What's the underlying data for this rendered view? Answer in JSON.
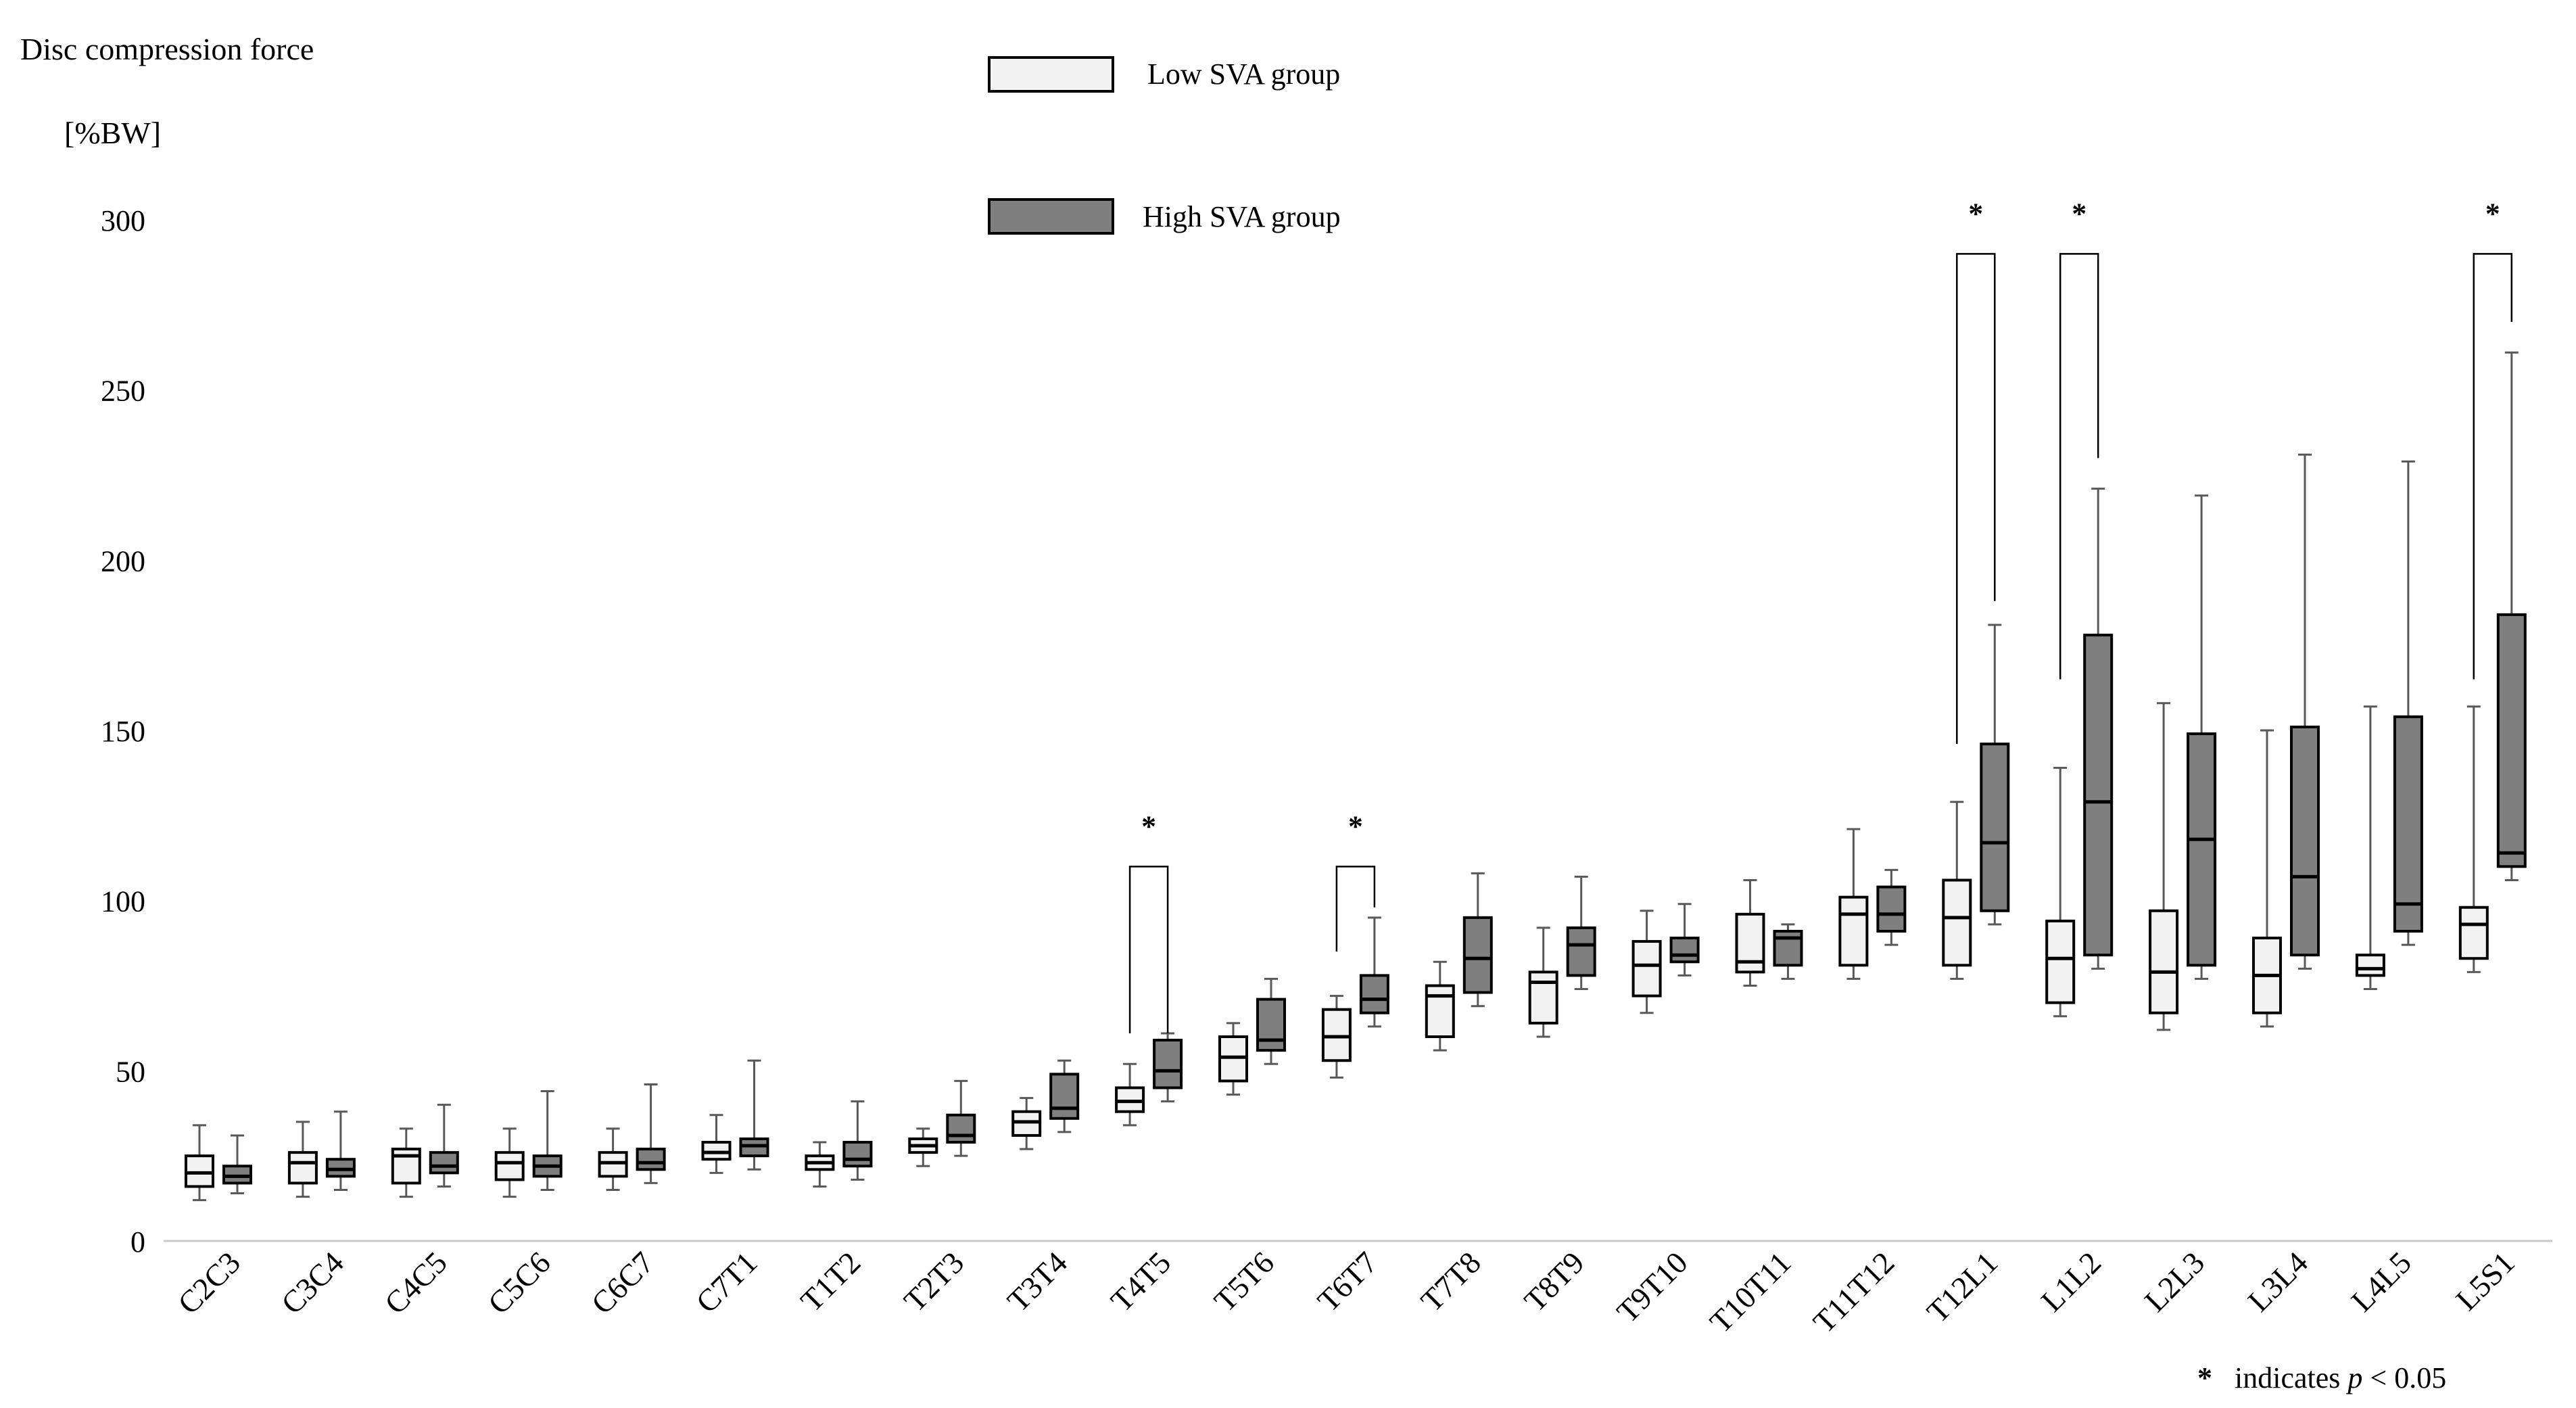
{
  "chart_data": {
    "type": "boxplot",
    "ylabel_line1": "Disc compression force",
    "ylabel_line2": "[%BW]",
    "ylim": [
      0,
      300
    ],
    "yticks": [
      0,
      50,
      100,
      150,
      200,
      250,
      300
    ],
    "categories": [
      "C2C3",
      "C3C4",
      "C4C5",
      "C5C6",
      "C6C7",
      "C7T1",
      "T1T2",
      "T2T3",
      "T3T4",
      "T4T5",
      "T5T6",
      "T6T7",
      "T7T8",
      "T8T9",
      "T9T10",
      "T10T11",
      "T11T12",
      "T12L1",
      "L1L2",
      "L2L3",
      "L3L4",
      "L4L5",
      "L5S1"
    ],
    "series": [
      {
        "name": "Low SVA group",
        "color": "#f2f2f2",
        "boxes": [
          {
            "min": 12,
            "q1": 16,
            "median": 20,
            "q3": 25,
            "max": 34
          },
          {
            "min": 13,
            "q1": 17,
            "median": 23,
            "q3": 26,
            "max": 35
          },
          {
            "min": 13,
            "q1": 17,
            "median": 25,
            "q3": 27,
            "max": 33
          },
          {
            "min": 13,
            "q1": 18,
            "median": 23,
            "q3": 26,
            "max": 33
          },
          {
            "min": 15,
            "q1": 19,
            "median": 23,
            "q3": 26,
            "max": 33
          },
          {
            "min": 20,
            "q1": 24,
            "median": 26,
            "q3": 29,
            "max": 37
          },
          {
            "min": 16,
            "q1": 21,
            "median": 23,
            "q3": 25,
            "max": 29
          },
          {
            "min": 22,
            "q1": 26,
            "median": 28,
            "q3": 30,
            "max": 33
          },
          {
            "min": 27,
            "q1": 31,
            "median": 35,
            "q3": 38,
            "max": 42
          },
          {
            "min": 34,
            "q1": 38,
            "median": 41,
            "q3": 45,
            "max": 52
          },
          {
            "min": 43,
            "q1": 47,
            "median": 54,
            "q3": 60,
            "max": 64
          },
          {
            "min": 48,
            "q1": 53,
            "median": 60,
            "q3": 68,
            "max": 72
          },
          {
            "min": 56,
            "q1": 60,
            "median": 72,
            "q3": 75,
            "max": 82
          },
          {
            "min": 60,
            "q1": 64,
            "median": 76,
            "q3": 79,
            "max": 92
          },
          {
            "min": 67,
            "q1": 72,
            "median": 81,
            "q3": 88,
            "max": 97
          },
          {
            "min": 75,
            "q1": 79,
            "median": 82,
            "q3": 96,
            "max": 106
          },
          {
            "min": 77,
            "q1": 81,
            "median": 96,
            "q3": 101,
            "max": 121
          },
          {
            "min": 77,
            "q1": 81,
            "median": 95,
            "q3": 106,
            "max": 129
          },
          {
            "min": 66,
            "q1": 70,
            "median": 83,
            "q3": 94,
            "max": 139
          },
          {
            "min": 62,
            "q1": 67,
            "median": 79,
            "q3": 97,
            "max": 158
          },
          {
            "min": 63,
            "q1": 67,
            "median": 78,
            "q3": 89,
            "max": 150
          },
          {
            "min": 74,
            "q1": 78,
            "median": 80,
            "q3": 84,
            "max": 157
          },
          {
            "min": 79,
            "q1": 83,
            "median": 93,
            "q3": 98,
            "max": 157
          }
        ]
      },
      {
        "name": "High SVA group",
        "color": "#7f7f7f",
        "boxes": [
          {
            "min": 14,
            "q1": 17,
            "median": 19,
            "q3": 22,
            "max": 31
          },
          {
            "min": 15,
            "q1": 19,
            "median": 21,
            "q3": 24,
            "max": 38
          },
          {
            "min": 16,
            "q1": 20,
            "median": 22,
            "q3": 26,
            "max": 40
          },
          {
            "min": 15,
            "q1": 19,
            "median": 22,
            "q3": 25,
            "max": 44
          },
          {
            "min": 17,
            "q1": 21,
            "median": 23,
            "q3": 27,
            "max": 46
          },
          {
            "min": 21,
            "q1": 25,
            "median": 28,
            "q3": 30,
            "max": 53
          },
          {
            "min": 18,
            "q1": 22,
            "median": 24,
            "q3": 29,
            "max": 41
          },
          {
            "min": 25,
            "q1": 29,
            "median": 31,
            "q3": 37,
            "max": 47
          },
          {
            "min": 32,
            "q1": 36,
            "median": 39,
            "q3": 49,
            "max": 53
          },
          {
            "min": 41,
            "q1": 45,
            "median": 50,
            "q3": 59,
            "max": 61
          },
          {
            "min": 52,
            "q1": 56,
            "median": 59,
            "q3": 71,
            "max": 77
          },
          {
            "min": 63,
            "q1": 67,
            "median": 71,
            "q3": 78,
            "max": 95
          },
          {
            "min": 69,
            "q1": 73,
            "median": 83,
            "q3": 95,
            "max": 108
          },
          {
            "min": 74,
            "q1": 78,
            "median": 87,
            "q3": 92,
            "max": 107
          },
          {
            "min": 78,
            "q1": 82,
            "median": 84,
            "q3": 89,
            "max": 99
          },
          {
            "min": 77,
            "q1": 81,
            "median": 89,
            "q3": 91,
            "max": 93
          },
          {
            "min": 87,
            "q1": 91,
            "median": 96,
            "q3": 104,
            "max": 109
          },
          {
            "min": 93,
            "q1": 97,
            "median": 117,
            "q3": 146,
            "max": 181
          },
          {
            "min": 80,
            "q1": 84,
            "median": 129,
            "q3": 178,
            "max": 221
          },
          {
            "min": 77,
            "q1": 81,
            "median": 118,
            "q3": 149,
            "max": 219
          },
          {
            "min": 80,
            "q1": 84,
            "median": 107,
            "q3": 151,
            "max": 231
          },
          {
            "min": 87,
            "q1": 91,
            "median": 99,
            "q3": 154,
            "max": 229
          },
          {
            "min": 106,
            "q1": 110,
            "median": 114,
            "q3": 184,
            "max": 261
          }
        ]
      }
    ],
    "significance_brackets": [
      {
        "category": "T4T5",
        "label": "*",
        "top": 110,
        "left_end": 61,
        "right_end": 61
      },
      {
        "category": "T6T7",
        "label": "*",
        "top": 110,
        "left_end": 85,
        "right_end": 98
      },
      {
        "category": "T12L1",
        "label": "*",
        "top": 290,
        "left_end": 146,
        "right_end": 188
      },
      {
        "category": "L1L2",
        "label": "*",
        "top": 290,
        "left_end": 165,
        "right_end": 230
      },
      {
        "category": "L5S1",
        "label": "*",
        "top": 290,
        "left_end": 165,
        "right_end": 270
      }
    ],
    "legend_position": "top-center",
    "grid": false,
    "footnote": {
      "marker": "*",
      "text": "indicates ",
      "italic": "p",
      "suffix": " < 0.05"
    }
  }
}
